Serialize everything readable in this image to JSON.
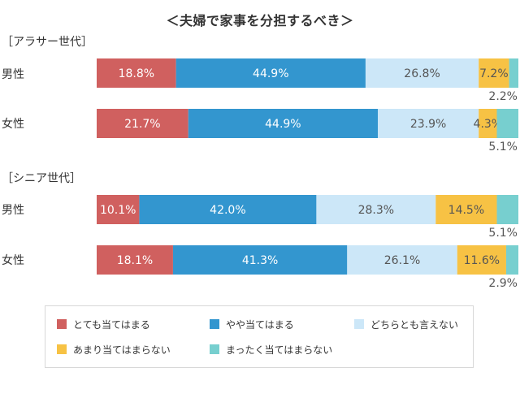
{
  "chart_data": {
    "type": "bar",
    "orientation": "horizontal-stacked-100",
    "title": "＜夫婦で家事を分担するべき＞",
    "xlim": [
      0,
      100
    ],
    "unit": "%",
    "grid": false,
    "legend_position": "bottom",
    "series": [
      {
        "name": "とても当てはまる",
        "color": "#d0605f"
      },
      {
        "name": "やや当てはまる",
        "color": "#3396cf"
      },
      {
        "name": "どちらとも言えない",
        "color": "#cce7f8"
      },
      {
        "name": "あまり当てはまらない",
        "color": "#f7c244"
      },
      {
        "name": "まったく当てはまらない",
        "color": "#77cfcf"
      }
    ],
    "groups": [
      {
        "label": "［アラサー世代］",
        "rows": [
          {
            "label": "男性",
            "values": [
              18.8,
              44.9,
              26.8,
              7.2,
              2.2
            ],
            "labels": [
              "18.8%",
              "44.9%",
              "26.8%",
              "7.2%",
              "2.2%"
            ]
          },
          {
            "label": "女性",
            "values": [
              21.7,
              44.9,
              23.9,
              4.3,
              5.1
            ],
            "labels": [
              "21.7%",
              "44.9%",
              "23.9%",
              "4.3%",
              "5.1%"
            ]
          }
        ]
      },
      {
        "label": "［シニア世代］",
        "rows": [
          {
            "label": "男性",
            "values": [
              10.1,
              42.0,
              28.3,
              14.5,
              5.1
            ],
            "labels": [
              "10.1%",
              "42.0%",
              "28.3%",
              "14.5%",
              "5.1%"
            ]
          },
          {
            "label": "女性",
            "values": [
              18.1,
              41.3,
              26.1,
              11.6,
              2.9
            ],
            "labels": [
              "18.1%",
              "41.3%",
              "26.1%",
              "11.6%",
              "2.9%"
            ]
          }
        ]
      }
    ]
  }
}
